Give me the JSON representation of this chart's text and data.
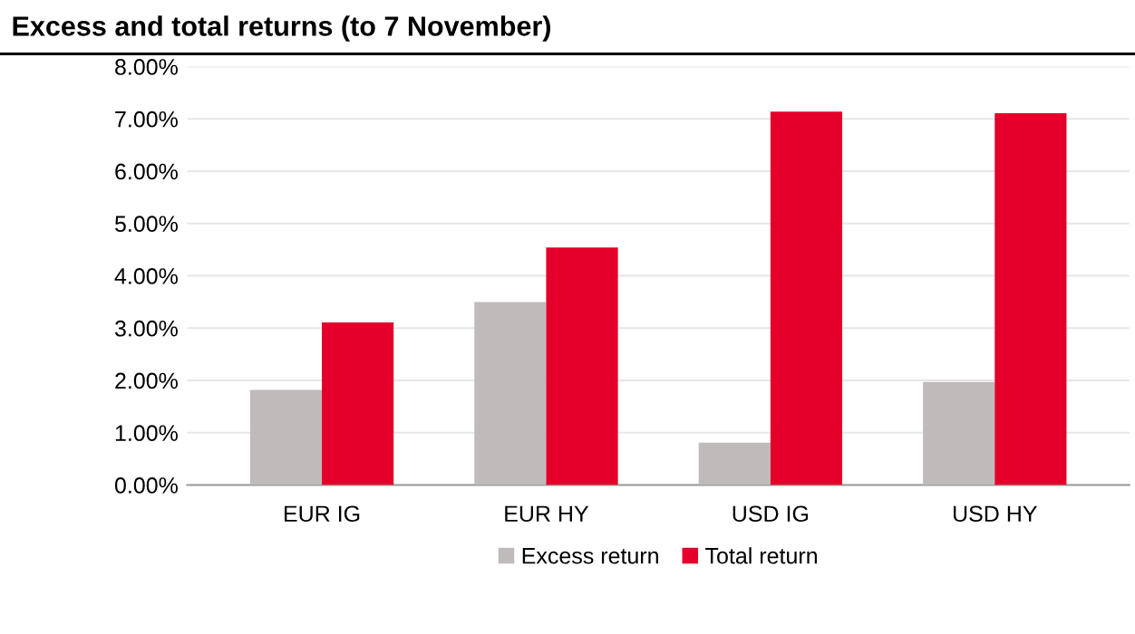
{
  "chart_data": {
    "type": "bar",
    "title": "Excess and total returns (to 7 November)",
    "categories": [
      "EUR IG",
      "EUR HY",
      "USD IG",
      "USD HY"
    ],
    "series": [
      {
        "name": "Excess return",
        "color": "#c0bbbb",
        "values": [
          1.82,
          3.5,
          0.81,
          1.97
        ]
      },
      {
        "name": "Total return",
        "color": "#e4002b",
        "values": [
          3.11,
          4.54,
          7.14,
          7.11
        ]
      }
    ],
    "ylim": [
      0,
      8
    ],
    "yticks": [
      {
        "value": 0,
        "label": "0.00%"
      },
      {
        "value": 1,
        "label": "1.00%"
      },
      {
        "value": 2,
        "label": "2.00%"
      },
      {
        "value": 3,
        "label": "3.00%"
      },
      {
        "value": 4,
        "label": "4.00%"
      },
      {
        "value": 5,
        "label": "5.00%"
      },
      {
        "value": 6,
        "label": "6.00%"
      },
      {
        "value": 7,
        "label": "7.00%"
      },
      {
        "value": 8,
        "label": "8.00%"
      }
    ],
    "grid": "y",
    "legend": "bottom"
  }
}
